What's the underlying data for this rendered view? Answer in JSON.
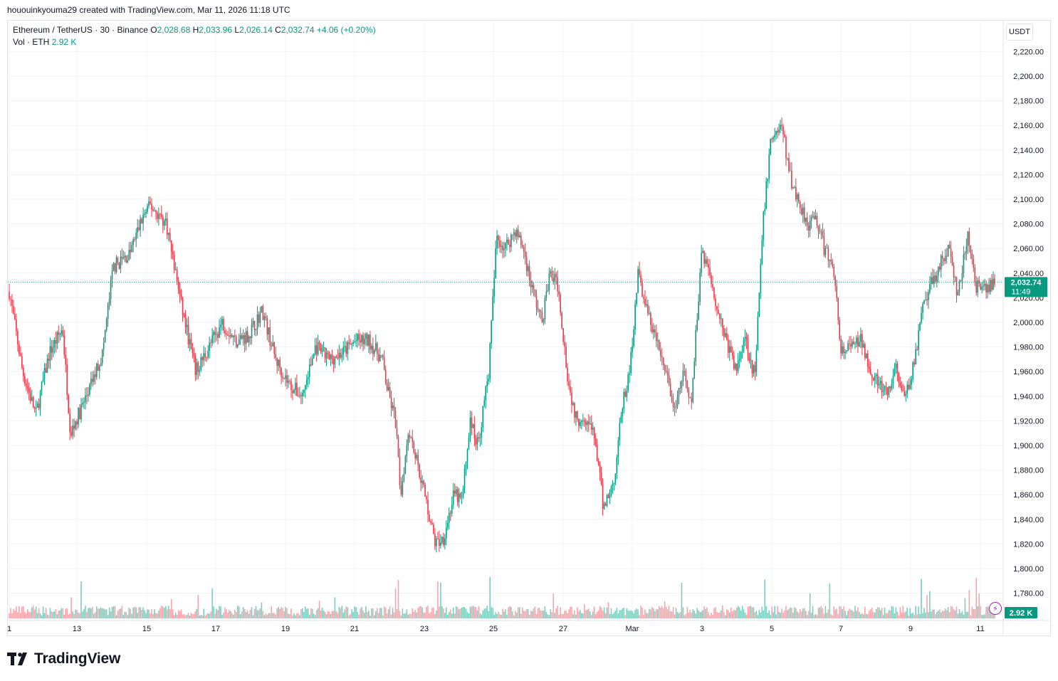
{
  "header": {
    "creator_line": "hououinkyouma29 created with TradingView.com, Mar 11, 2026 11:18 UTC"
  },
  "legend": {
    "symbol": "Ethereum / TetherUS · 30 · Binance",
    "o_label": "O",
    "o_value": "2,028.68",
    "h_label": "H",
    "h_value": "2,033.96",
    "l_label": "L",
    "l_value": "2,026.14",
    "c_label": "C",
    "c_value": "2,032.74",
    "change": "+4.06 (+0.20%)",
    "vol_label": "Vol · ETH",
    "vol_value": "2.92 K"
  },
  "price_axis": {
    "currency": "USDT",
    "last_price_label": "2,032.74",
    "countdown": "11:49",
    "volume_label": "2.92 K"
  },
  "branding": {
    "logo_text": "TradingView"
  },
  "colors": {
    "up": "#089981",
    "down": "#f23645",
    "grid": "#f0f3fa",
    "up_volume": "#7fcdbf",
    "down_volume": "#f7a5ab",
    "price_line": "#089981"
  },
  "icons": {
    "logo": "tradingview-logo-icon",
    "flash": "lightning-icon"
  },
  "chart_data": {
    "type": "candlestick",
    "title": "Ethereum / TetherUS · 30 · Binance",
    "ylabel": "USDT",
    "ylim": [
      1771,
      2228
    ],
    "y_ticks": [
      "2,220.00",
      "2,200.00",
      "2,180.00",
      "2,160.00",
      "2,140.00",
      "2,120.00",
      "2,100.00",
      "2,080.00",
      "2,060.00",
      "2,040.00",
      "2,020.00",
      "2,000.00",
      "1,980.00",
      "1,960.00",
      "1,940.00",
      "1,920.00",
      "1,900.00",
      "1,880.00",
      "1,860.00",
      "1,840.00",
      "1,820.00",
      "1,800.00",
      "1,780.00"
    ],
    "x_ticks": [
      "1",
      "13",
      "15",
      "17",
      "19",
      "21",
      "23",
      "25",
      "27",
      "Mar",
      "3",
      "5",
      "7",
      "9",
      "11"
    ],
    "last_price": 2032.74,
    "grid": true,
    "price_path_approx": [
      {
        "t": 0,
        "close": 2025
      },
      {
        "t": 0.5,
        "close": 1960
      },
      {
        "t": 1,
        "close": 1925
      },
      {
        "t": 1.5,
        "close": 1975
      },
      {
        "t": 2,
        "close": 1995
      },
      {
        "t": 2.3,
        "close": 1910
      },
      {
        "t": 3,
        "close": 1945
      },
      {
        "t": 3.5,
        "close": 1975
      },
      {
        "t": 3.9,
        "close": 2045
      },
      {
        "t": 4.5,
        "close": 2055
      },
      {
        "t": 5,
        "close": 2085
      },
      {
        "t": 5.3,
        "close": 2095
      },
      {
        "t": 5.9,
        "close": 2080
      },
      {
        "t": 6.5,
        "close": 2010
      },
      {
        "t": 7,
        "close": 1960
      },
      {
        "t": 7.5,
        "close": 1980
      },
      {
        "t": 8,
        "close": 2000
      },
      {
        "t": 8.5,
        "close": 1985
      },
      {
        "t": 9,
        "close": 1990
      },
      {
        "t": 9.5,
        "close": 2010
      },
      {
        "t": 10,
        "close": 1970
      },
      {
        "t": 10.5,
        "close": 1950
      },
      {
        "t": 11,
        "close": 1940
      },
      {
        "t": 11.5,
        "close": 1980
      },
      {
        "t": 12,
        "close": 1970
      },
      {
        "t": 12.5,
        "close": 1975
      },
      {
        "t": 13,
        "close": 1985
      },
      {
        "t": 13.5,
        "close": 1985
      },
      {
        "t": 14,
        "close": 1970
      },
      {
        "t": 14.2,
        "close": 1945
      },
      {
        "t": 14.5,
        "close": 1920
      },
      {
        "t": 14.7,
        "close": 1860
      },
      {
        "t": 15,
        "close": 1915
      },
      {
        "t": 15.5,
        "close": 1870
      },
      {
        "t": 16,
        "close": 1820
      },
      {
        "t": 16.3,
        "close": 1825
      },
      {
        "t": 16.7,
        "close": 1860
      },
      {
        "t": 17,
        "close": 1855
      },
      {
        "t": 17.3,
        "close": 1920
      },
      {
        "t": 17.6,
        "close": 1900
      },
      {
        "t": 18,
        "close": 1960
      },
      {
        "t": 18.3,
        "close": 2070
      },
      {
        "t": 18.6,
        "close": 2060
      },
      {
        "t": 19,
        "close": 2075
      },
      {
        "t": 19.3,
        "close": 2060
      },
      {
        "t": 19.6,
        "close": 2030
      },
      {
        "t": 20,
        "close": 2000
      },
      {
        "t": 20.3,
        "close": 2040
      },
      {
        "t": 20.6,
        "close": 2030
      },
      {
        "t": 21,
        "close": 1950
      },
      {
        "t": 21.3,
        "close": 1920
      },
      {
        "t": 21.6,
        "close": 1925
      },
      {
        "t": 22,
        "close": 1905
      },
      {
        "t": 22.3,
        "close": 1850
      },
      {
        "t": 22.7,
        "close": 1870
      },
      {
        "t": 23,
        "close": 1930
      },
      {
        "t": 23.3,
        "close": 1960
      },
      {
        "t": 23.6,
        "close": 2040
      },
      {
        "t": 24,
        "close": 2005
      },
      {
        "t": 24.3,
        "close": 1985
      },
      {
        "t": 24.7,
        "close": 1955
      },
      {
        "t": 25,
        "close": 1925
      },
      {
        "t": 25.3,
        "close": 1960
      },
      {
        "t": 25.6,
        "close": 1930
      },
      {
        "t": 26,
        "close": 2060
      },
      {
        "t": 26.3,
        "close": 2040
      },
      {
        "t": 26.6,
        "close": 2010
      },
      {
        "t": 27,
        "close": 1980
      },
      {
        "t": 27.3,
        "close": 1960
      },
      {
        "t": 27.6,
        "close": 1990
      },
      {
        "t": 28,
        "close": 1955
      },
      {
        "t": 28.3,
        "close": 2080
      },
      {
        "t": 28.6,
        "close": 2150
      },
      {
        "t": 29,
        "close": 2160
      },
      {
        "t": 29.3,
        "close": 2120
      },
      {
        "t": 29.6,
        "close": 2100
      },
      {
        "t": 30,
        "close": 2080
      },
      {
        "t": 30.3,
        "close": 2085
      },
      {
        "t": 30.6,
        "close": 2060
      },
      {
        "t": 31,
        "close": 2040
      },
      {
        "t": 31.2,
        "close": 1975
      },
      {
        "t": 31.6,
        "close": 1980
      },
      {
        "t": 32,
        "close": 1985
      },
      {
        "t": 32.3,
        "close": 1965
      },
      {
        "t": 32.6,
        "close": 1950
      },
      {
        "t": 33,
        "close": 1940
      },
      {
        "t": 33.3,
        "close": 1965
      },
      {
        "t": 33.6,
        "close": 1935
      },
      {
        "t": 34,
        "close": 1970
      },
      {
        "t": 34.3,
        "close": 2010
      },
      {
        "t": 34.6,
        "close": 2030
      },
      {
        "t": 35,
        "close": 2050
      },
      {
        "t": 35.3,
        "close": 2060
      },
      {
        "t": 35.6,
        "close": 2020
      },
      {
        "t": 36,
        "close": 2070
      },
      {
        "t": 36.3,
        "close": 2030
      },
      {
        "t": 36.6,
        "close": 2025
      },
      {
        "t": 37,
        "close": 2032.74
      }
    ]
  }
}
